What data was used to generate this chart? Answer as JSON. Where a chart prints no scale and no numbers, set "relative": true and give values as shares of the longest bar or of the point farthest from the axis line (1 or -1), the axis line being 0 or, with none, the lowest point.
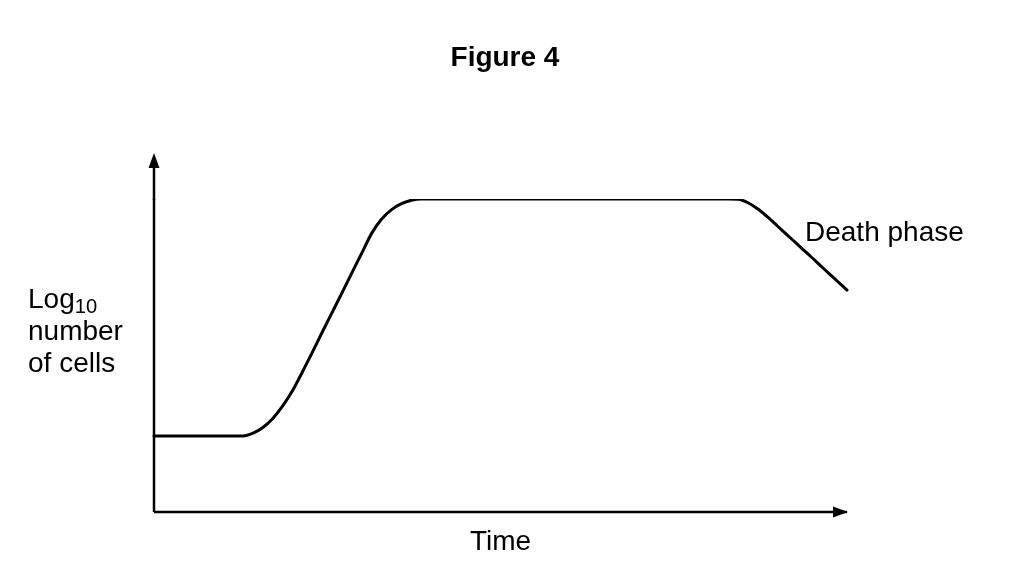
{
  "chart_data": {
    "type": "line",
    "title": "Figure 4",
    "xlabel": "Time",
    "ylabel": "Log$_{10}$\nnumber\nof cells",
    "annotations": [
      "Death phase"
    ],
    "categories": [
      null,
      null,
      null,
      null,
      null,
      null,
      null,
      null,
      null,
      null,
      null,
      null,
      null,
      null,
      null,
      null,
      null,
      null,
      null,
      null,
      null,
      null,
      null,
      null,
      null,
      null,
      null,
      null,
      null,
      null,
      null,
      null,
      null,
      null,
      null,
      null,
      null,
      null,
      null,
      null,
      null,
      null,
      null,
      null,
      null,
      null,
      null,
      null,
      null,
      null,
      null,
      null,
      null,
      null,
      null,
      null,
      null,
      null,
      null,
      null,
      null,
      null,
      null,
      null,
      null,
      null,
      null,
      null,
      null,
      null,
      null
    ],
    "values": [
      0.243,
      0.243,
      0.243,
      0.243,
      0.243,
      0.243,
      0.243,
      0.243,
      0.243,
      0.243,
      0.252,
      0.27,
      0.299,
      0.339,
      0.388,
      0.448,
      0.511,
      0.575,
      0.638,
      0.701,
      0.765,
      0.828,
      0.891,
      0.936,
      0.966,
      0.985,
      0.996,
      1,
      1,
      1,
      1,
      1,
      1,
      1,
      1,
      1,
      1,
      1,
      1,
      1,
      1,
      1,
      1,
      1,
      1,
      1,
      1,
      1,
      1,
      1,
      1,
      1,
      1,
      1,
      1,
      1,
      1,
      1,
      1,
      0.999,
      0.988,
      0.968,
      0.942,
      0.913,
      0.884,
      0.855,
      0.826,
      0.797,
      0.767,
      0.738,
      0.709
    ],
    "color": "#000000",
    "relative": true,
    "marker": "none",
    "line_style": "solid"
  }
}
